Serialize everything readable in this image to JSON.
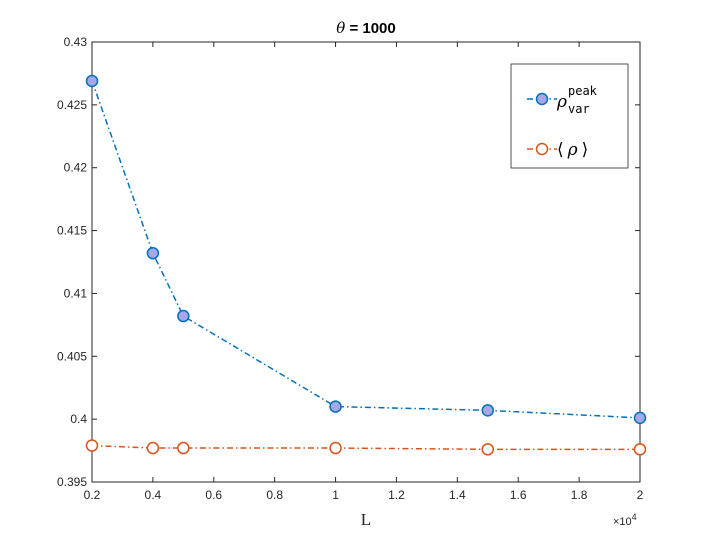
{
  "chart_data": {
    "type": "line",
    "title_prefix": "θ",
    "title_suffix": " = 1000",
    "xlabel": "L",
    "x_exponent_base": "×10",
    "x_exponent_power": "4",
    "x": [
      2000,
      4000,
      5000,
      10000,
      15000,
      20000
    ],
    "xlim": [
      2000,
      20000
    ],
    "ylim": [
      0.395,
      0.43
    ],
    "xticks": [
      0.2,
      0.4,
      0.6,
      0.8,
      1,
      1.2,
      1.4,
      1.6,
      1.8,
      2
    ],
    "xtick_labels": [
      "0.2",
      "0.4",
      "0.6",
      "0.8",
      "1",
      "1.2",
      "1.4",
      "1.6",
      "1.8",
      "2"
    ],
    "yticks": [
      0.395,
      0.4,
      0.405,
      0.41,
      0.415,
      0.42,
      0.425,
      0.43
    ],
    "ytick_labels": [
      "0.395",
      "0.4",
      "0.405",
      "0.41",
      "0.415",
      "0.42",
      "0.425",
      "0.43"
    ],
    "grid": false,
    "legend_position": "top-right",
    "series": [
      {
        "legend_main": "ρ",
        "legend_sup": "peak",
        "legend_sub": "var",
        "values": [
          0.4269,
          0.4132,
          0.4082,
          0.401,
          0.4007,
          0.4001
        ],
        "line_color": "#0072BD",
        "marker_fill": "#A6A6E8",
        "marker_edge": "#0072BD"
      },
      {
        "legend_left": "⟨",
        "legend_main": "ρ",
        "legend_right": "⟩",
        "values": [
          0.3979,
          0.3977,
          0.3977,
          0.3977,
          0.3976,
          0.3976
        ],
        "line_color": "#D95319",
        "marker_fill": "#FFFFFF",
        "marker_edge": "#D95319"
      }
    ]
  }
}
